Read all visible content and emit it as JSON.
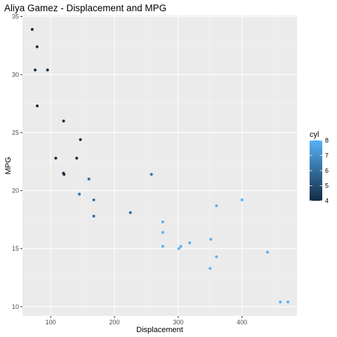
{
  "chart_data": {
    "type": "scatter",
    "title": "Aliya Gamez - Displacement and MPG",
    "xlabel": "Displacement",
    "ylabel": "MPG",
    "xlim": [
      55.8,
      486.2
    ],
    "ylim": [
      9.2,
      35.1
    ],
    "x_ticks": [
      100,
      200,
      300,
      400
    ],
    "y_ticks": [
      10,
      15,
      20,
      25,
      30,
      35
    ],
    "grid": true,
    "legend": {
      "title": "cyl",
      "position": "right",
      "type": "colorbar",
      "range": [
        4,
        8
      ],
      "ticks": [
        4,
        5,
        6,
        7,
        8
      ],
      "color_low": "#132B43",
      "color_high": "#56B1F7"
    },
    "points": [
      {
        "x": 160,
        "y": 21.0,
        "cyl": 6
      },
      {
        "x": 160,
        "y": 21.0,
        "cyl": 6
      },
      {
        "x": 108,
        "y": 22.8,
        "cyl": 4
      },
      {
        "x": 258,
        "y": 21.4,
        "cyl": 6
      },
      {
        "x": 360,
        "y": 18.7,
        "cyl": 8
      },
      {
        "x": 225,
        "y": 18.1,
        "cyl": 6
      },
      {
        "x": 360,
        "y": 14.3,
        "cyl": 8
      },
      {
        "x": 146.7,
        "y": 24.4,
        "cyl": 4
      },
      {
        "x": 140.8,
        "y": 22.8,
        "cyl": 4
      },
      {
        "x": 167.6,
        "y": 19.2,
        "cyl": 6
      },
      {
        "x": 167.6,
        "y": 17.8,
        "cyl": 6
      },
      {
        "x": 275.8,
        "y": 16.4,
        "cyl": 8
      },
      {
        "x": 275.8,
        "y": 17.3,
        "cyl": 8
      },
      {
        "x": 275.8,
        "y": 15.2,
        "cyl": 8
      },
      {
        "x": 472,
        "y": 10.4,
        "cyl": 8
      },
      {
        "x": 460,
        "y": 10.4,
        "cyl": 8
      },
      {
        "x": 440,
        "y": 14.7,
        "cyl": 8
      },
      {
        "x": 78.7,
        "y": 32.4,
        "cyl": 4
      },
      {
        "x": 75.7,
        "y": 30.4,
        "cyl": 4
      },
      {
        "x": 71.1,
        "y": 33.9,
        "cyl": 4
      },
      {
        "x": 120.1,
        "y": 21.5,
        "cyl": 4
      },
      {
        "x": 318,
        "y": 15.5,
        "cyl": 8
      },
      {
        "x": 304,
        "y": 15.2,
        "cyl": 8
      },
      {
        "x": 350,
        "y": 13.3,
        "cyl": 8
      },
      {
        "x": 400,
        "y": 19.2,
        "cyl": 8
      },
      {
        "x": 79,
        "y": 27.3,
        "cyl": 4
      },
      {
        "x": 120.3,
        "y": 26.0,
        "cyl": 4
      },
      {
        "x": 95.1,
        "y": 30.4,
        "cyl": 4
      },
      {
        "x": 351,
        "y": 15.8,
        "cyl": 8
      },
      {
        "x": 145,
        "y": 19.7,
        "cyl": 6
      },
      {
        "x": 301,
        "y": 15.0,
        "cyl": 8
      },
      {
        "x": 121,
        "y": 21.4,
        "cyl": 4
      }
    ]
  }
}
